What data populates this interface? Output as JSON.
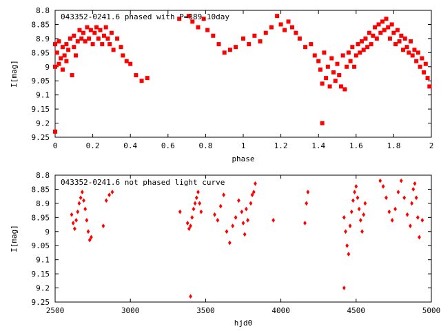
{
  "chart_data": [
    {
      "type": "scatter",
      "title": "043352-0241.6 phased with P=389.10day",
      "xlabel": "phase",
      "ylabel": "I[mag]",
      "xlim": [
        0,
        2
      ],
      "ylim": [
        8.8,
        9.25
      ],
      "y_inverted": true,
      "x_ticks": [
        "0",
        "0.2",
        "0.4",
        "0.6",
        "0.8",
        "1",
        "1.2",
        "1.4",
        "1.6",
        "1.8",
        "2"
      ],
      "x_tick_values": [
        0,
        0.2,
        0.4,
        0.6,
        0.8,
        1.0,
        1.2,
        1.4,
        1.6,
        1.8,
        2.0
      ],
      "y_ticks": [
        "8.8",
        "8.85",
        "8.9",
        "8.95",
        "9",
        "9.05",
        "9.1",
        "9.15",
        "9.2",
        "9.25"
      ],
      "y_tick_values": [
        8.8,
        8.85,
        8.9,
        8.95,
        9.0,
        9.05,
        9.1,
        9.15,
        9.2,
        9.25
      ],
      "grid": false,
      "marker_color": "#ff0000",
      "marker": "star",
      "series": [
        {
          "x": [
            0.0,
            0.0,
            0.01,
            0.02,
            0.02,
            0.03,
            0.04,
            0.04,
            0.05,
            0.06,
            0.06,
            0.07,
            0.08,
            0.09,
            0.1,
            0.1,
            0.11,
            0.12,
            0.13,
            0.14,
            0.15,
            0.16,
            0.17,
            0.18,
            0.19,
            0.2,
            0.21,
            0.22,
            0.23,
            0.24,
            0.25,
            0.26,
            0.27,
            0.28,
            0.29,
            0.3,
            0.31,
            0.33,
            0.35,
            0.36,
            0.38,
            0.4,
            0.43,
            0.46,
            0.49,
            0.66,
            0.71,
            0.73,
            0.76,
            0.79,
            0.81,
            0.84,
            0.87,
            0.9,
            0.93,
            0.96,
            1.0,
            1.03,
            1.06,
            1.09,
            1.12,
            1.15,
            1.18,
            1.2,
            1.22,
            1.24,
            1.26,
            1.28,
            1.3,
            1.33,
            1.36,
            1.38,
            1.4,
            1.41,
            1.42,
            1.43,
            1.44,
            1.45,
            1.46,
            1.47,
            1.48,
            1.49,
            1.5,
            1.51,
            1.52,
            1.53,
            1.54,
            1.55,
            1.56,
            1.57,
            1.58,
            1.59,
            1.6,
            1.61,
            1.62,
            1.63,
            1.64,
            1.65,
            1.66,
            1.67,
            1.68,
            1.69,
            1.7,
            1.71,
            1.72,
            1.73,
            1.74,
            1.75,
            1.76,
            1.77,
            1.78,
            1.79,
            1.8,
            1.81,
            1.82,
            1.83,
            1.84,
            1.85,
            1.86,
            1.87,
            1.88,
            1.89,
            1.9,
            1.91,
            1.92,
            1.93,
            1.94,
            1.95,
            1.96,
            1.97,
            1.98,
            1.99,
            1.42,
            0.0
          ],
          "y": [
            9.0,
            8.92,
            8.95,
            8.91,
            8.99,
            8.97,
            8.93,
            9.01,
            8.96,
            8.92,
            8.98,
            8.94,
            8.9,
            9.03,
            8.93,
            8.89,
            8.96,
            8.91,
            8.87,
            8.9,
            8.88,
            8.91,
            8.86,
            8.9,
            8.87,
            8.92,
            8.88,
            8.86,
            8.9,
            8.87,
            8.92,
            8.89,
            8.86,
            8.9,
            8.92,
            8.88,
            8.94,
            8.9,
            8.93,
            8.96,
            8.98,
            8.99,
            9.03,
            9.05,
            9.04,
            8.83,
            8.82,
            8.84,
            8.86,
            8.83,
            8.87,
            8.89,
            8.92,
            8.95,
            8.94,
            8.93,
            8.9,
            8.92,
            8.89,
            8.91,
            8.88,
            8.86,
            8.82,
            8.85,
            8.87,
            8.84,
            8.86,
            8.88,
            8.9,
            8.93,
            8.92,
            8.96,
            8.98,
            9.01,
            9.06,
            8.95,
            9.04,
            9.0,
            9.07,
            8.97,
            9.02,
            9.05,
            8.99,
            9.03,
            9.07,
            8.96,
            9.08,
            9.0,
            8.95,
            8.98,
            8.93,
            9.0,
            8.96,
            8.92,
            8.95,
            8.91,
            8.94,
            8.9,
            8.93,
            8.88,
            8.92,
            8.89,
            8.86,
            8.9,
            8.85,
            8.88,
            8.84,
            8.87,
            8.83,
            8.86,
            8.9,
            8.85,
            8.88,
            8.92,
            8.87,
            8.91,
            8.89,
            8.94,
            8.9,
            8.93,
            8.95,
            8.91,
            8.96,
            8.94,
            8.98,
            8.95,
            9.0,
            8.97,
            9.02,
            8.99,
            9.04,
            9.07,
            9.2,
            9.23
          ]
        }
      ]
    },
    {
      "type": "scatter",
      "title": "043352-0241.6 not phased light curve",
      "xlabel": "hjd0",
      "ylabel": "I[mag]",
      "xlim": [
        2500,
        5000
      ],
      "ylim": [
        8.8,
        9.25
      ],
      "y_inverted": true,
      "x_ticks": [
        "2500",
        "3000",
        "3500",
        "4000",
        "4500",
        "5000"
      ],
      "x_tick_values": [
        2500,
        3000,
        3500,
        4000,
        4500,
        5000
      ],
      "y_ticks": [
        "8.8",
        "8.85",
        "8.9",
        "8.95",
        "9",
        "9.05",
        "9.1",
        "9.15",
        "9.2",
        "9.25"
      ],
      "y_tick_values": [
        8.8,
        8.85,
        8.9,
        8.95,
        9.0,
        9.05,
        9.1,
        9.15,
        9.2,
        9.25
      ],
      "grid": false,
      "marker_color": "#ff0000",
      "marker": "diamond",
      "series": [
        {
          "x": [
            2610,
            2620,
            2630,
            2640,
            2650,
            2660,
            2670,
            2680,
            2690,
            2700,
            2710,
            2720,
            2730,
            2740,
            2820,
            2840,
            2860,
            2880,
            3330,
            3380,
            3390,
            3400,
            3410,
            3420,
            3430,
            3440,
            3450,
            3460,
            3470,
            3560,
            3580,
            3600,
            3620,
            3640,
            3660,
            3680,
            3700,
            3720,
            3740,
            3750,
            3760,
            3770,
            3780,
            3800,
            3810,
            3820,
            3830,
            3950,
            4160,
            4170,
            4180,
            4420,
            4430,
            4440,
            4450,
            4460,
            4470,
            4480,
            4490,
            4500,
            4510,
            4520,
            4530,
            4540,
            4550,
            4560,
            4660,
            4680,
            4700,
            4720,
            4740,
            4760,
            4780,
            4800,
            4820,
            4840,
            4860,
            4870,
            4880,
            4890,
            4900,
            4910,
            4920,
            4940,
            4420,
            3400
          ],
          "y": [
            8.94,
            8.97,
            8.99,
            8.96,
            8.93,
            8.9,
            8.88,
            8.86,
            8.89,
            8.92,
            8.96,
            9.0,
            9.03,
            9.02,
            8.98,
            8.89,
            8.87,
            8.86,
            8.93,
            8.97,
            8.99,
            8.98,
            8.95,
            8.92,
            8.9,
            8.88,
            8.86,
            8.9,
            8.93,
            8.94,
            8.96,
            8.91,
            8.87,
            9.0,
            9.04,
            8.98,
            8.95,
            8.89,
            8.93,
            8.97,
            9.01,
            8.92,
            8.96,
            8.9,
            8.87,
            8.86,
            8.83,
            8.96,
            8.97,
            8.9,
            8.86,
            8.95,
            9.0,
            9.05,
            9.08,
            8.98,
            8.93,
            8.89,
            8.86,
            8.84,
            8.88,
            8.92,
            8.96,
            9.0,
            8.94,
            8.9,
            8.82,
            8.84,
            8.88,
            8.93,
            8.96,
            8.92,
            8.86,
            8.82,
            8.88,
            8.94,
            8.98,
            8.9,
            8.85,
            8.83,
            8.88,
            8.95,
            9.02,
            8.96,
            9.2,
            9.23
          ]
        }
      ]
    }
  ]
}
